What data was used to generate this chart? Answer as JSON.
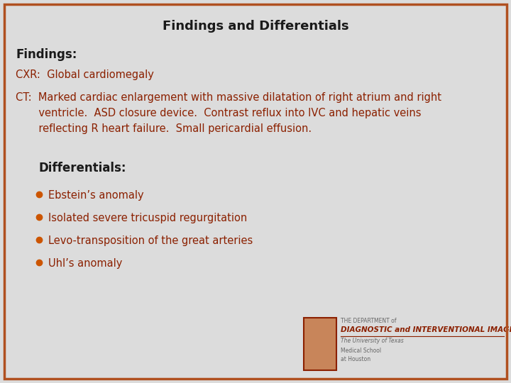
{
  "title": "Findings and Differentials",
  "title_fontsize": 13,
  "title_color": "#1a1a1a",
  "background_color": "#dcdcdc",
  "border_color": "#b05020",
  "findings_header": "Findings:",
  "findings_header_color": "#1a1a1a",
  "cxr_line": "CXR:  Global cardiomegaly",
  "cxr_color": "#8b2000",
  "ct_line1": "CT:  Marked cardiac enlargement with massive dilatation of right atrium and right",
  "ct_line2": "       ventricle.  ASD closure device.  Contrast reflux into IVC and hepatic veins",
  "ct_line3": "       reflecting R heart failure.  Small pericardial effusion.",
  "ct_color": "#8b2000",
  "differentials_header": "Differentials:",
  "differentials_header_color": "#1a1a1a",
  "bullet_color": "#cc5500",
  "bullet_items": [
    "Ebstein’s anomaly",
    "Isolated severe tricuspid regurgitation",
    "Levo-transposition of the great arteries",
    "Uhl’s anomaly"
  ],
  "bullet_text_color": "#8b2000",
  "logo_text1": "THE DEPARTMENT of",
  "logo_text2": "DIAGNOSTIC and INTERVENTIONAL IMAGING",
  "logo_text3": "The University of Texas",
  "logo_text4": "Medical School",
  "logo_text5": "at Houston",
  "logo_color": "#8b2000",
  "logo_small_color": "#666666"
}
